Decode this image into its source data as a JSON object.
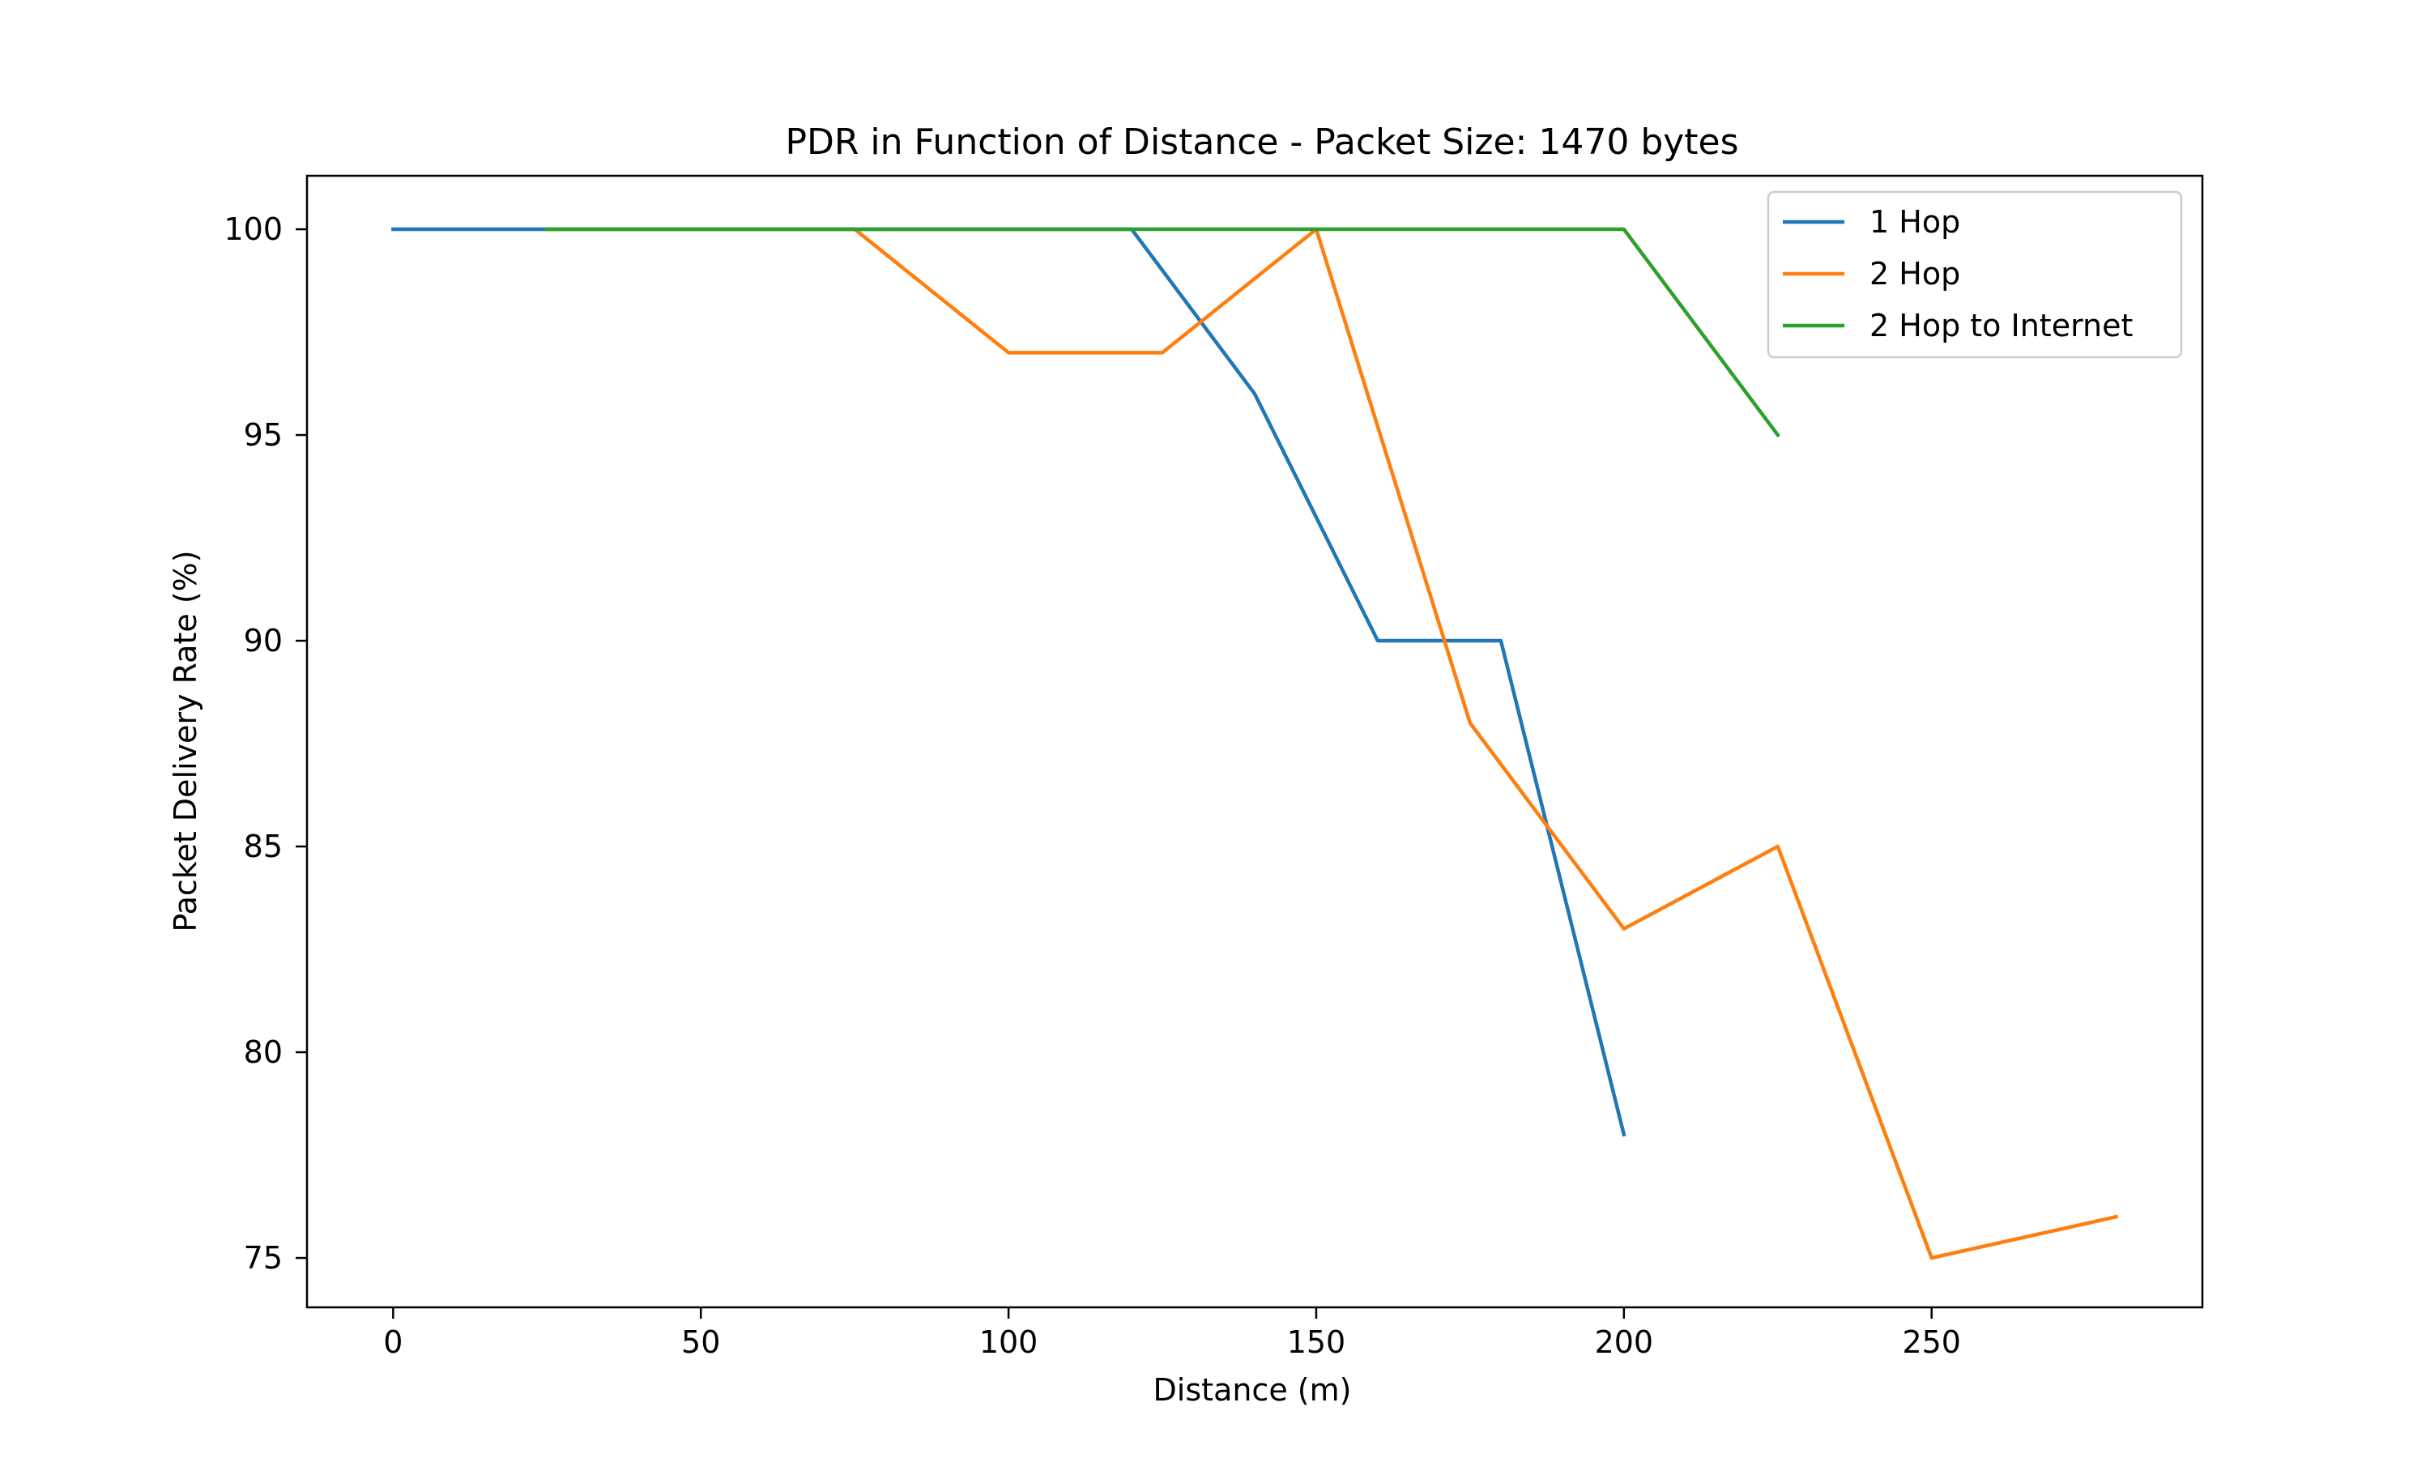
{
  "chart_data": {
    "type": "line",
    "title": "PDR in Function of Distance - Packet Size: 1470 bytes",
    "xlabel": "Distance (m)",
    "ylabel": "Packet Delivery Rate (%)",
    "xlim": [
      -14,
      294
    ],
    "ylim": [
      73.8,
      101.3
    ],
    "xticks": [
      0,
      50,
      100,
      150,
      200,
      250
    ],
    "yticks": [
      75,
      80,
      85,
      90,
      95,
      100
    ],
    "grid": false,
    "legend_position": "top-right",
    "series": [
      {
        "name": "1 Hop",
        "color": "#1f77b4",
        "x": [
          0,
          25,
          50,
          75,
          100,
          120,
          140,
          160,
          180,
          200
        ],
        "y": [
          100,
          100,
          100,
          100,
          100,
          100,
          96,
          90,
          90,
          78
        ]
      },
      {
        "name": "2 Hop",
        "color": "#ff7f0e",
        "x": [
          25,
          50,
          75,
          100,
          125,
          150,
          175,
          200,
          225,
          250,
          280
        ],
        "y": [
          100,
          100,
          100,
          97,
          97,
          100,
          88,
          83,
          85,
          75,
          76
        ]
      },
      {
        "name": "2 Hop to Internet",
        "color": "#2ca02c",
        "x": [
          25,
          50,
          75,
          100,
          125,
          150,
          175,
          200,
          225
        ],
        "y": [
          100,
          100,
          100,
          100,
          100,
          100,
          100,
          100,
          95
        ]
      }
    ]
  }
}
